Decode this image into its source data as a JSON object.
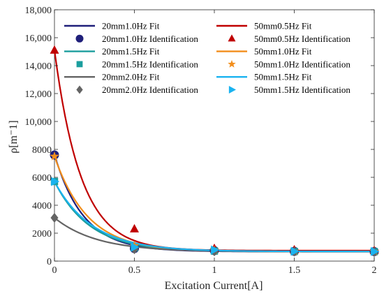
{
  "chart_data": {
    "type": "scatter",
    "xlabel": "Excitation Current[A]",
    "ylabel": "ρ[m⁻1]",
    "xlim": [
      0,
      2
    ],
    "ylim": [
      0,
      18000
    ],
    "x_ticks": [
      0,
      0.5,
      1,
      1.5,
      2
    ],
    "x_tick_labels": [
      "0",
      "0.5",
      "1",
      "1.5",
      "2"
    ],
    "y_ticks": [
      0,
      2000,
      4000,
      6000,
      8000,
      10000,
      12000,
      14000,
      16000,
      18000
    ],
    "y_tick_labels": [
      "0",
      "2000",
      "4000",
      "6000",
      "8000",
      "10,000",
      "12,000",
      "14,000",
      "16,000",
      "18,000"
    ],
    "grid": false,
    "legend_position": "top",
    "series": [
      {
        "fit_name": "20mm1.0Hz Fit",
        "ident_name": "20mm1.0Hz Identification",
        "color": "#1f1f7a",
        "marker": "circle",
        "points": [
          [
            0,
            7600
          ],
          [
            0.5,
            900
          ],
          [
            1,
            750
          ],
          [
            1.5,
            700
          ],
          [
            2,
            680
          ]
        ],
        "fit": {
          "a": 6950,
          "k": 5.5,
          "c": 680
        }
      },
      {
        "fit_name": "50mm0.5Hz Fit",
        "ident_name": "50mm0.5Hz Identification",
        "color": "#c00000",
        "marker": "triangle-up",
        "points": [
          [
            0,
            15100
          ],
          [
            0.5,
            2300
          ],
          [
            1,
            900
          ],
          [
            1.5,
            800
          ],
          [
            2,
            750
          ]
        ],
        "fit": {
          "a": 14350,
          "k": 6.0,
          "c": 750
        }
      },
      {
        "fit_name": "20mm1.5Hz Fit",
        "ident_name": "20mm1.5Hz Identification",
        "color": "#1b9e9e",
        "marker": "square",
        "points": [
          [
            0,
            5700
          ],
          [
            0.5,
            950
          ],
          [
            1,
            720
          ],
          [
            1.5,
            690
          ],
          [
            2,
            680
          ]
        ],
        "fit": {
          "a": 5020,
          "k": 4.5,
          "c": 680
        }
      },
      {
        "fit_name": "50mm1.0Hz Fit",
        "ident_name": "50mm1.0Hz Identification",
        "color": "#f28e1c",
        "marker": "star",
        "points": [
          [
            0,
            7500
          ],
          [
            0.5,
            1100
          ],
          [
            1,
            780
          ],
          [
            1.5,
            700
          ],
          [
            2,
            690
          ]
        ],
        "fit": {
          "a": 6810,
          "k": 4.8,
          "c": 690
        }
      },
      {
        "fit_name": "20mm2.0Hz Fit",
        "ident_name": "20mm2.0Hz Identification",
        "color": "#646464",
        "marker": "diamond",
        "points": [
          [
            0,
            3100
          ],
          [
            0.5,
            850
          ],
          [
            1,
            700
          ],
          [
            1.5,
            680
          ],
          [
            2,
            670
          ]
        ],
        "fit": {
          "a": 2430,
          "k": 3.8,
          "c": 670
        }
      },
      {
        "fit_name": "50mm1.5Hz Fit",
        "ident_name": "50mm1.5Hz Identification",
        "color": "#1ab3f0",
        "marker": "triangle-right",
        "points": [
          [
            0,
            5700
          ],
          [
            0.5,
            1000
          ],
          [
            1,
            800
          ],
          [
            1.5,
            700
          ],
          [
            2,
            690
          ]
        ],
        "fit": {
          "a": 5010,
          "k": 4.2,
          "c": 690
        }
      }
    ]
  }
}
